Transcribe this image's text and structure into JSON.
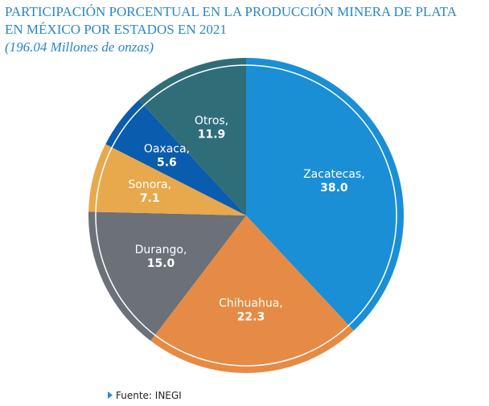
{
  "chart_data": {
    "type": "pie",
    "title": "PARTICIPACIÓN PORCENTUAL EN LA PRODUCCIÓN MINERA DE PLATA",
    "title_line2": "EN MÉXICO POR ESTADOS EN 2021",
    "subtitle": "(196.04 Millones de onzas)",
    "source": "Fuente: INEGI",
    "categories": [
      "Zacatecas,",
      "Chihuahua,",
      "Durango,",
      "Sonora,",
      "Oaxaca,",
      "Otros,"
    ],
    "values": [
      38.0,
      22.3,
      15.0,
      7.1,
      5.6,
      11.9
    ],
    "value_labels": [
      "38.0",
      "22.3",
      "15.0",
      "7.1",
      "5.6",
      "11.9"
    ],
    "colors": [
      "#1a8fd6",
      "#e58b45",
      "#6b7079",
      "#e8a94d",
      "#0a5cae",
      "#2f6d79"
    ]
  }
}
